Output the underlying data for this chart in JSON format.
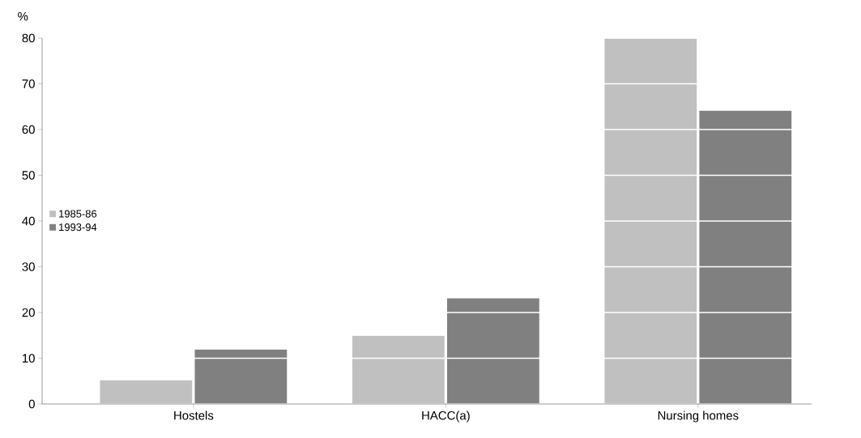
{
  "chart_data": {
    "type": "bar",
    "ylabel": "%",
    "categories": [
      "Hostels",
      "HACC(a)",
      "Nursing homes"
    ],
    "series": [
      {
        "name": "1985-86",
        "color": "#c0c0c0",
        "values": [
          5.3,
          15,
          80
        ]
      },
      {
        "name": "1993-94",
        "color": "#808080",
        "values": [
          12,
          23.2,
          64.2
        ]
      }
    ],
    "ylim": [
      0,
      80
    ],
    "yticks": [
      0,
      10,
      20,
      30,
      40,
      50,
      60,
      70,
      80
    ],
    "grid": "y",
    "legend": "left"
  }
}
